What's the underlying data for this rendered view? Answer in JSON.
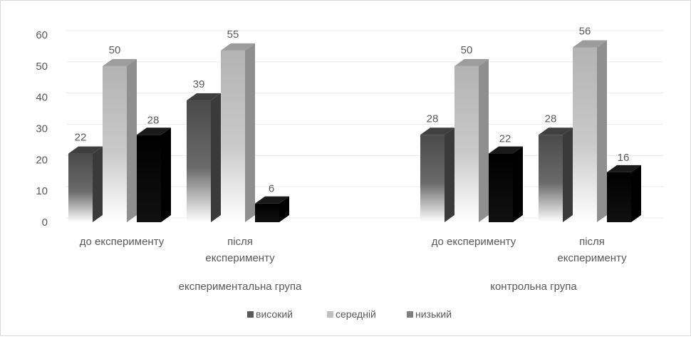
{
  "chart_data": {
    "type": "bar",
    "title": "",
    "xlabel": "",
    "ylabel": "",
    "ylim": [
      0,
      60
    ],
    "yticks": [
      0,
      10,
      20,
      30,
      40,
      50,
      60
    ],
    "grid": true,
    "legend_position": "bottom",
    "groups": [
      {
        "label": "експериментальна група",
        "categories": [
          "до експерименту",
          "після експерименту"
        ]
      },
      {
        "label": "контрольна група",
        "categories": [
          "до експерименту",
          "після експерименту"
        ]
      }
    ],
    "categories": [
      "до експерименту",
      "після експерименту",
      "до експерименту",
      "після експерименту"
    ],
    "series": [
      {
        "name": "високий",
        "values": [
          22,
          39,
          28,
          28
        ],
        "color": "#595959"
      },
      {
        "name": "середній",
        "values": [
          50,
          55,
          50,
          56
        ],
        "color": "#bfbfbf"
      },
      {
        "name": "низький",
        "values": [
          28,
          6,
          22,
          16
        ],
        "color": "#000000"
      }
    ]
  }
}
